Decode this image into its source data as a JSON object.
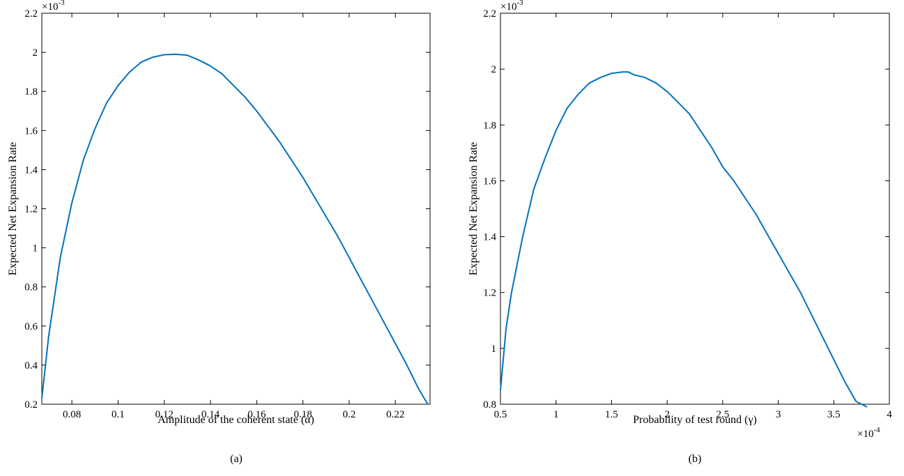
{
  "chart_data": [
    {
      "type": "line",
      "caption": "(a)",
      "xlabel": "Amplitude of the coherent state (α)",
      "ylabel": "Expected Net Expansion Rate",
      "x_exponent": "",
      "y_exponent": "-3",
      "xlim": [
        0.067,
        0.235
      ],
      "ylim": [
        0.2,
        2.2
      ],
      "x_ticks": [
        0.08,
        0.1,
        0.12,
        0.14,
        0.16,
        0.18,
        0.2,
        0.22
      ],
      "x_tick_labels": [
        "0.08",
        "0.1",
        "0.12",
        "0.14",
        "0.16",
        "0.18",
        "0.2",
        "0.22"
      ],
      "y_ticks": [
        0.2,
        0.4,
        0.6,
        0.8,
        1.0,
        1.2,
        1.4,
        1.6,
        1.8,
        2.0,
        2.2
      ],
      "y_tick_labels": [
        "0.2",
        "0.4",
        "0.6",
        "0.8",
        "1",
        "1.2",
        "1.4",
        "1.6",
        "1.8",
        "2",
        "2.2"
      ],
      "grid": false,
      "color": "#0072BD",
      "x": [
        0.067,
        0.07,
        0.075,
        0.08,
        0.085,
        0.09,
        0.095,
        0.1,
        0.105,
        0.11,
        0.115,
        0.12,
        0.125,
        0.13,
        0.135,
        0.14,
        0.145,
        0.15,
        0.155,
        0.16,
        0.165,
        0.17,
        0.175,
        0.18,
        0.185,
        0.19,
        0.195,
        0.2,
        0.205,
        0.21,
        0.215,
        0.22,
        0.225,
        0.23,
        0.234
      ],
      "y": [
        0.23,
        0.55,
        0.95,
        1.23,
        1.45,
        1.61,
        1.74,
        1.83,
        1.9,
        1.95,
        1.975,
        1.988,
        1.99,
        1.985,
        1.96,
        1.93,
        1.89,
        1.83,
        1.77,
        1.7,
        1.62,
        1.54,
        1.45,
        1.36,
        1.26,
        1.16,
        1.06,
        0.95,
        0.84,
        0.73,
        0.62,
        0.51,
        0.4,
        0.28,
        0.2
      ]
    },
    {
      "type": "line",
      "caption": "(b)",
      "xlabel": "Probability of test round (γ)",
      "ylabel": "Expected Net Expansion Rate",
      "x_exponent": "-4",
      "y_exponent": "-3",
      "xlim": [
        0.5,
        4.0
      ],
      "ylim": [
        0.8,
        2.2
      ],
      "x_ticks": [
        0.5,
        1.0,
        1.5,
        2.0,
        2.5,
        3.0,
        3.5,
        4.0
      ],
      "x_tick_labels": [
        "0.5",
        "1",
        "1.5",
        "2",
        "2.5",
        "3",
        "3.5",
        "4"
      ],
      "y_ticks": [
        0.8,
        1.0,
        1.2,
        1.4,
        1.6,
        1.8,
        2.0,
        2.2
      ],
      "y_tick_labels": [
        "0.8",
        "1",
        "1.2",
        "1.4",
        "1.6",
        "1.8",
        "2",
        "2.2"
      ],
      "grid": false,
      "color": "#0072BD",
      "x": [
        0.5,
        0.55,
        0.6,
        0.7,
        0.8,
        0.9,
        1.0,
        1.1,
        1.2,
        1.3,
        1.4,
        1.5,
        1.6,
        1.65,
        1.7,
        1.8,
        1.9,
        2.0,
        2.1,
        2.2,
        2.3,
        2.4,
        2.5,
        2.6,
        2.7,
        2.8,
        2.9,
        3.0,
        3.1,
        3.2,
        3.3,
        3.4,
        3.5,
        3.6,
        3.7,
        3.8
      ],
      "y": [
        0.85,
        1.07,
        1.2,
        1.4,
        1.57,
        1.68,
        1.78,
        1.86,
        1.91,
        1.95,
        1.97,
        1.985,
        1.99,
        1.99,
        1.98,
        1.97,
        1.95,
        1.92,
        1.88,
        1.84,
        1.78,
        1.72,
        1.65,
        1.6,
        1.54,
        1.48,
        1.41,
        1.34,
        1.27,
        1.2,
        1.12,
        1.04,
        0.96,
        0.88,
        0.81,
        0.79
      ]
    }
  ]
}
